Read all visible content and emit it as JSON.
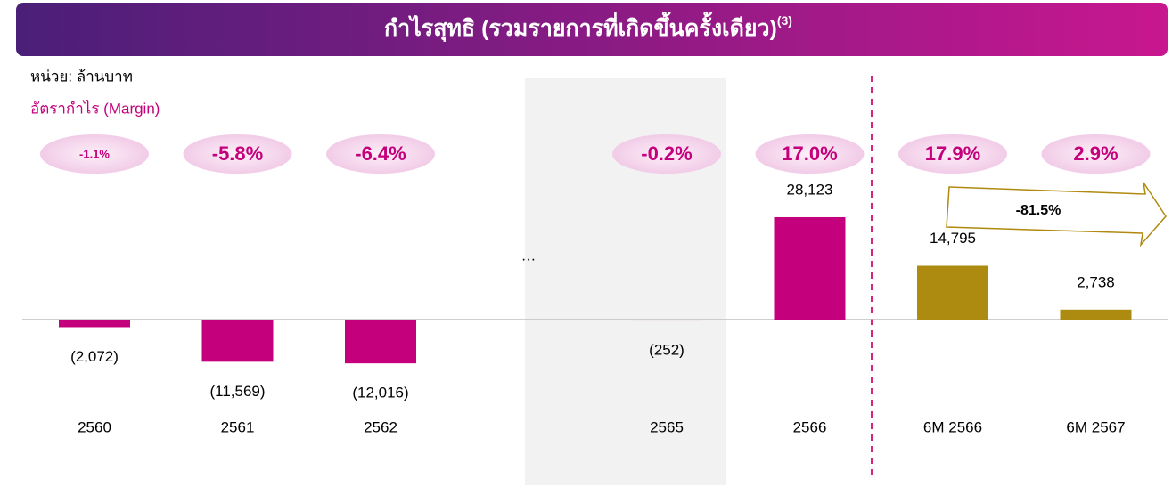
{
  "chart_data": {
    "type": "bar",
    "title": "กำไรสุทธิ (รวมรายการที่เกิดขึ้นครั้งเดียว)",
    "title_note": "(3)",
    "unit_label": "หน่วย: ล้านบาท",
    "margin_title": "อัตรากำไร (Margin)",
    "gap_label": "…",
    "categories": [
      "2560",
      "2561",
      "2562",
      "2565",
      "2566",
      "6M 2566",
      "6M 2567"
    ],
    "values": [
      -2072,
      -11569,
      -12016,
      -252,
      28123,
      14795,
      2738
    ],
    "value_labels": [
      "(2,072)",
      "(11,569)",
      "(12,016)",
      "(252)",
      "28,123",
      "14,795",
      "2,738"
    ],
    "colors": [
      "#c4007c",
      "#c4007c",
      "#c4007c",
      "#c4007c",
      "#c4007c",
      "#ad8a10",
      "#ad8a10"
    ],
    "margins": [
      -1.1,
      -5.8,
      -6.4,
      -0.2,
      17.0,
      17.9,
      2.9
    ],
    "margin_labels": [
      "-1.1%",
      "-5.8%",
      "-6.4%",
      "-0.2%",
      "17.0%",
      "17.9%",
      "2.9%"
    ],
    "annotation": "-81.5%",
    "ylim": [
      -20000,
      40000
    ]
  }
}
